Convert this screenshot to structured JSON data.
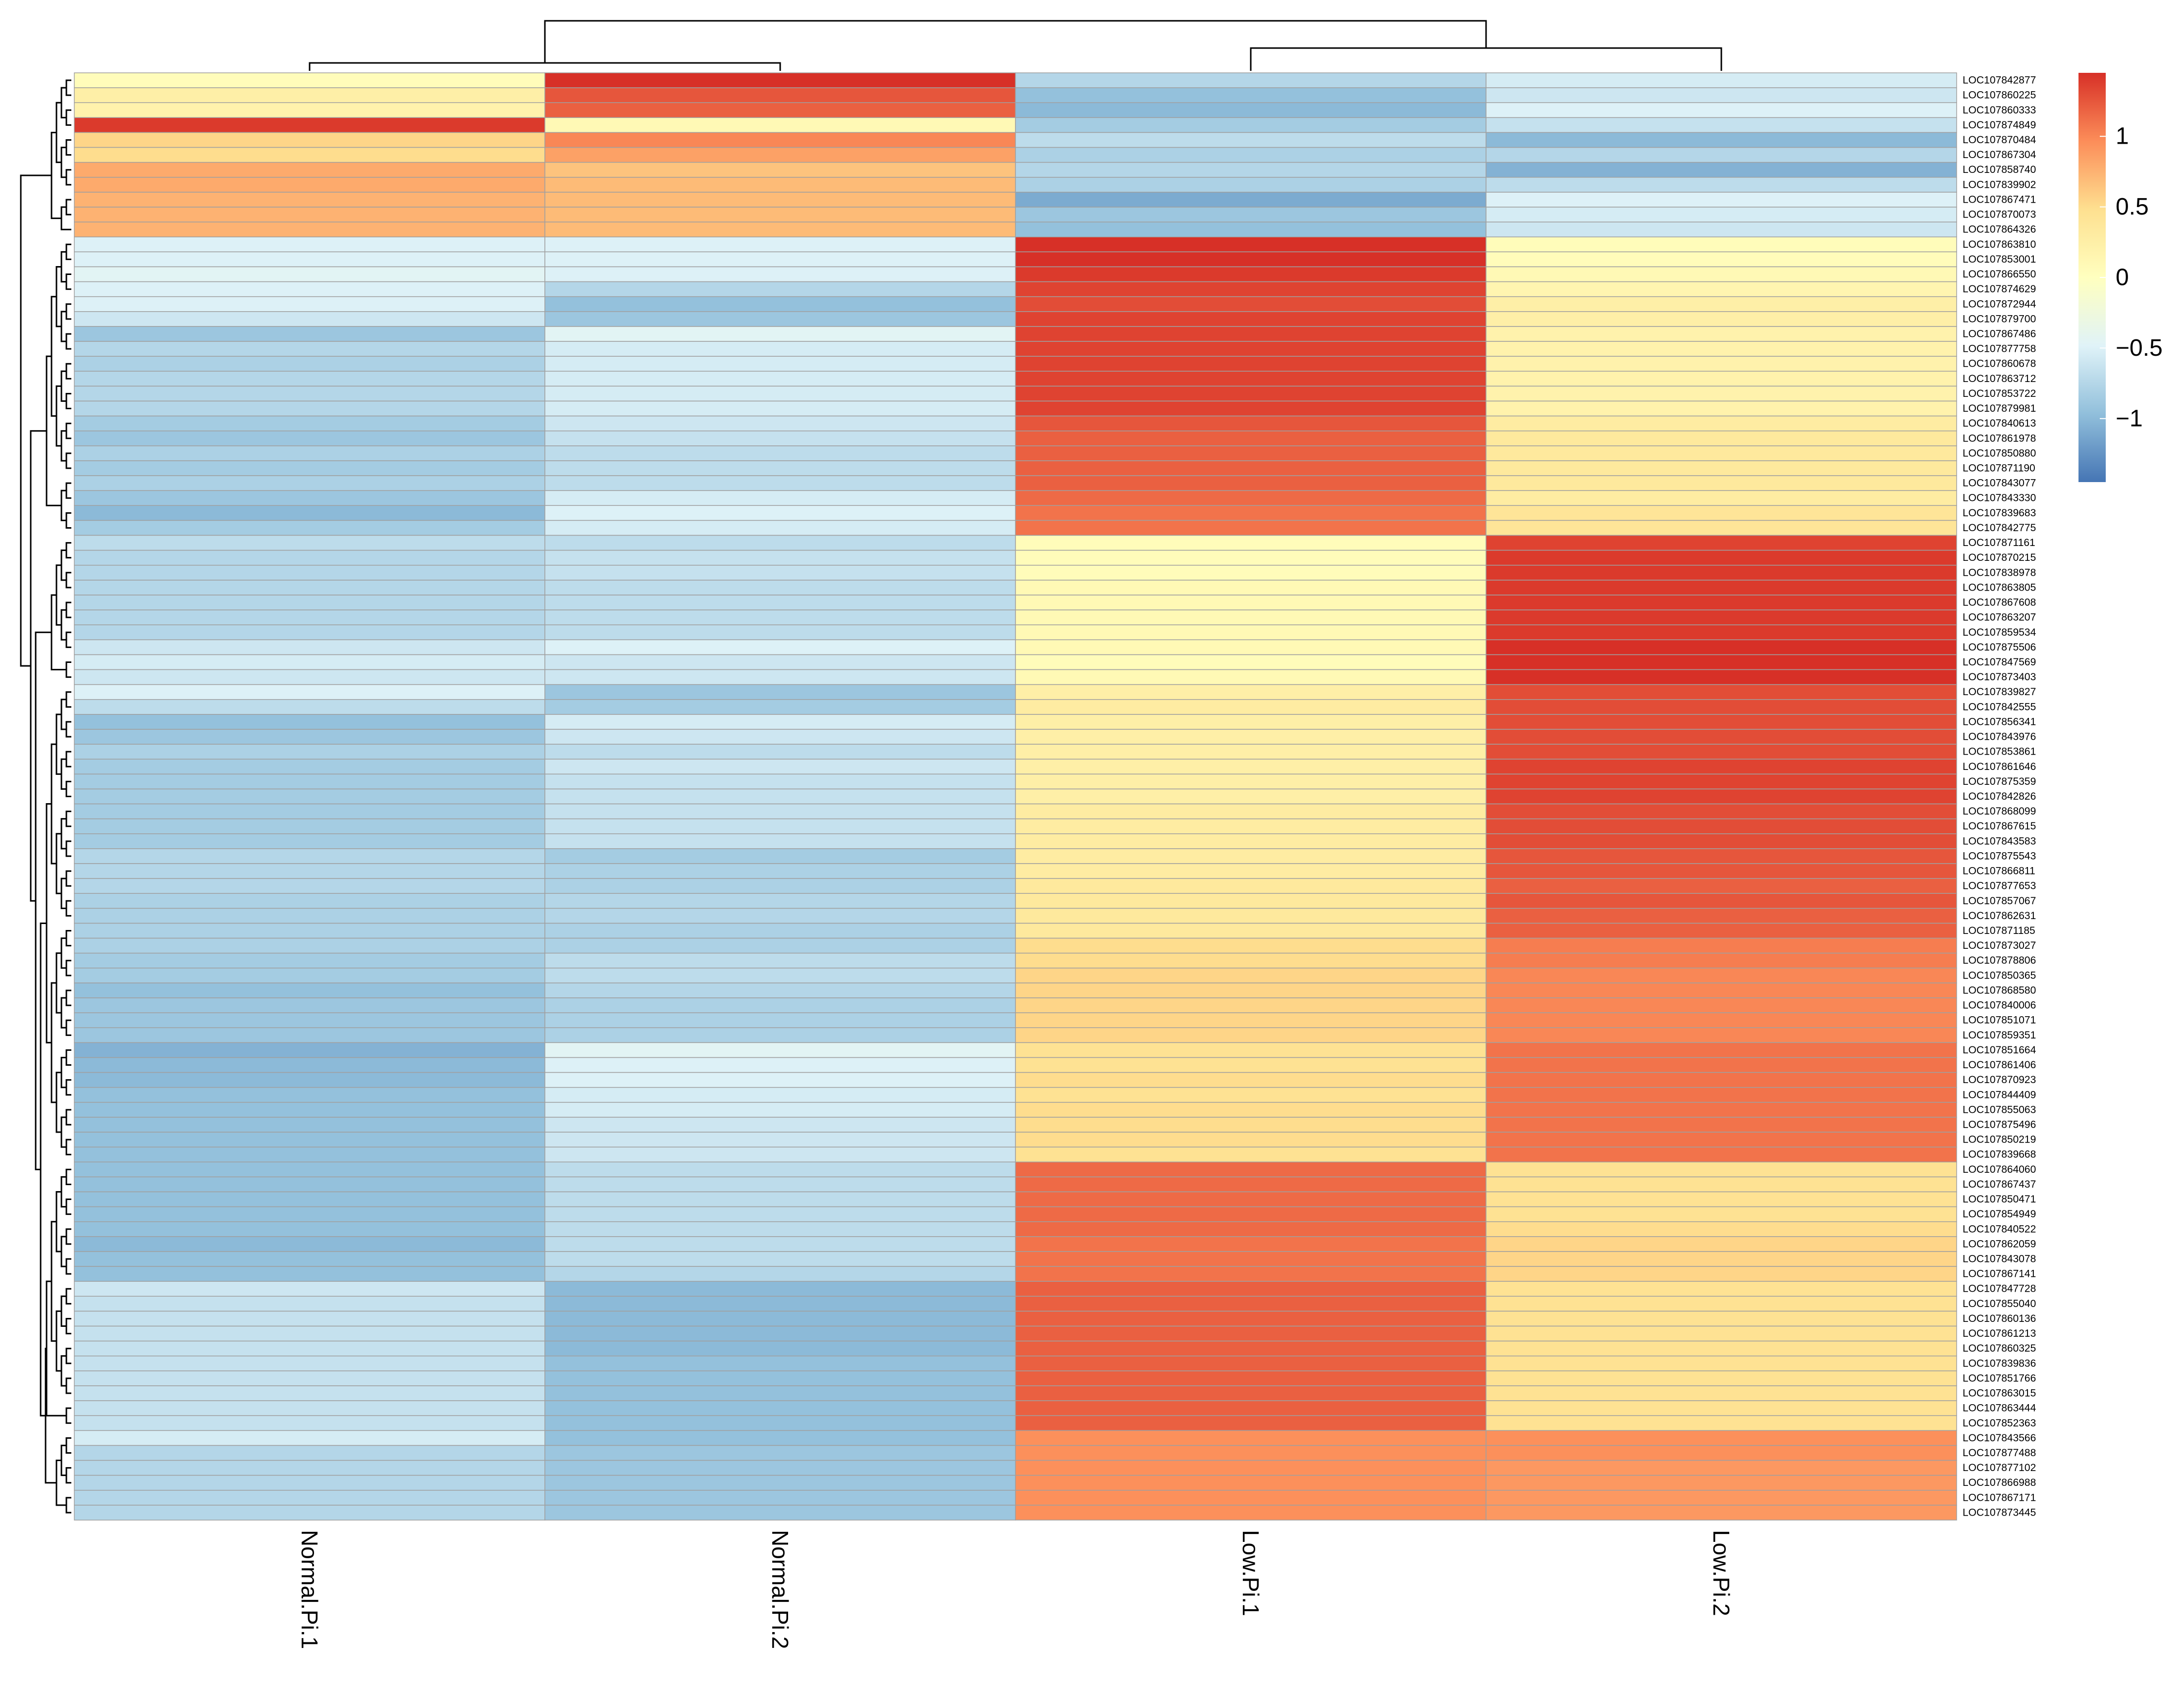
{
  "chart_data": {
    "type": "heatmap",
    "columns": [
      "Normal.Pi.1",
      "Normal.Pi.2",
      "Low.Pi.1",
      "Low.Pi.2"
    ],
    "rows": [
      "LOC107842877",
      "LOC107860225",
      "LOC107860333",
      "LOC107874849",
      "LOC107870484",
      "LOC107867304",
      "LOC107858740",
      "LOC107839902",
      "LOC107867471",
      "LOC107870073",
      "LOC107864326",
      "LOC107863810",
      "LOC107853001",
      "LOC107866550",
      "LOC107874629",
      "LOC107872944",
      "LOC107879700",
      "LOC107867486",
      "LOC107877758",
      "LOC107860678",
      "LOC107863712",
      "LOC107853722",
      "LOC107879981",
      "LOC107840613",
      "LOC107861978",
      "LOC107850880",
      "LOC107871190",
      "LOC107843077",
      "LOC107843330",
      "LOC107839683",
      "LOC107842775",
      "LOC107871161",
      "LOC107870215",
      "LOC107838978",
      "LOC107863805",
      "LOC107867608",
      "LOC107863207",
      "LOC107859534",
      "LOC107875506",
      "LOC107847569",
      "LOC107873403",
      "LOC107839827",
      "LOC107842555",
      "LOC107856341",
      "LOC107843976",
      "LOC107853861",
      "LOC107861646",
      "LOC107875359",
      "LOC107842826",
      "LOC107868099",
      "LOC107867615",
      "LOC107843583",
      "LOC107875543",
      "LOC107866811",
      "LOC107877653",
      "LOC107857067",
      "LOC107862631",
      "LOC107871185",
      "LOC107873027",
      "LOC107878806",
      "LOC107850365",
      "LOC107868580",
      "LOC107840006",
      "LOC107851071",
      "LOC107859351",
      "LOC107851664",
      "LOC107861406",
      "LOC107870923",
      "LOC107844409",
      "LOC107855063",
      "LOC107875496",
      "LOC107850219",
      "LOC107839668",
      "LOC107864060",
      "LOC107867437",
      "LOC107850471",
      "LOC107854949",
      "LOC107840522",
      "LOC107862059",
      "LOC107843078",
      "LOC107867141",
      "LOC107847728",
      "LOC107855040",
      "LOC107860136",
      "LOC107861213",
      "LOC107860325",
      "LOC107839836",
      "LOC107851766",
      "LOC107863015",
      "LOC107863444",
      "LOC107852363",
      "LOC107843566",
      "LOC107877488",
      "LOC107877102",
      "LOC107866988",
      "LOC107867171",
      "LOC107873445"
    ],
    "values": [
      [
        0.05,
        1.45,
        -0.75,
        -0.55
      ],
      [
        0.25,
        1.25,
        -0.95,
        -0.6
      ],
      [
        0.2,
        1.2,
        -1.0,
        -0.5
      ],
      [
        1.4,
        0.1,
        -0.85,
        -0.65
      ],
      [
        0.55,
        1.0,
        -0.7,
        -1.0
      ],
      [
        0.5,
        0.85,
        -0.8,
        -0.75
      ],
      [
        0.8,
        0.65,
        -0.75,
        -1.05
      ],
      [
        0.8,
        0.7,
        -0.8,
        -0.7
      ],
      [
        0.75,
        0.7,
        -1.1,
        -0.5
      ],
      [
        0.75,
        0.7,
        -0.9,
        -0.55
      ],
      [
        0.75,
        0.7,
        -0.95,
        -0.6
      ],
      [
        -0.5,
        -0.5,
        1.45,
        0.05
      ],
      [
        -0.5,
        -0.5,
        1.45,
        0.05
      ],
      [
        -0.45,
        -0.5,
        1.4,
        0.1
      ],
      [
        -0.5,
        -0.75,
        1.35,
        0.15
      ],
      [
        -0.5,
        -0.95,
        1.3,
        0.25
      ],
      [
        -0.6,
        -0.9,
        1.35,
        0.25
      ],
      [
        -0.9,
        -0.45,
        1.35,
        0.2
      ],
      [
        -0.75,
        -0.55,
        1.35,
        0.2
      ],
      [
        -0.8,
        -0.55,
        1.35,
        0.2
      ],
      [
        -0.75,
        -0.55,
        1.35,
        0.2
      ],
      [
        -0.75,
        -0.55,
        1.35,
        0.2
      ],
      [
        -0.75,
        -0.55,
        1.35,
        0.2
      ],
      [
        -0.85,
        -0.6,
        1.25,
        0.3
      ],
      [
        -0.9,
        -0.65,
        1.2,
        0.35
      ],
      [
        -0.8,
        -0.7,
        1.2,
        0.35
      ],
      [
        -0.85,
        -0.7,
        1.2,
        0.35
      ],
      [
        -0.8,
        -0.7,
        1.2,
        0.35
      ],
      [
        -0.9,
        -0.55,
        1.15,
        0.3
      ],
      [
        -1.0,
        -0.5,
        1.1,
        0.4
      ],
      [
        -0.85,
        -0.55,
        1.1,
        0.4
      ],
      [
        -0.7,
        -0.7,
        0.05,
        1.35
      ],
      [
        -0.75,
        -0.65,
        0.05,
        1.4
      ],
      [
        -0.75,
        -0.65,
        0.05,
        1.4
      ],
      [
        -0.75,
        -0.7,
        0.1,
        1.4
      ],
      [
        -0.75,
        -0.7,
        0.1,
        1.4
      ],
      [
        -0.75,
        -0.7,
        0.1,
        1.4
      ],
      [
        -0.75,
        -0.7,
        0.1,
        1.4
      ],
      [
        -0.6,
        -0.5,
        0.1,
        1.45
      ],
      [
        -0.55,
        -0.6,
        0.05,
        1.45
      ],
      [
        -0.6,
        -0.6,
        0.1,
        1.45
      ],
      [
        -0.5,
        -0.9,
        0.25,
        1.3
      ],
      [
        -0.7,
        -0.85,
        0.3,
        1.3
      ],
      [
        -0.95,
        -0.55,
        0.25,
        1.3
      ],
      [
        -0.9,
        -0.6,
        0.25,
        1.3
      ],
      [
        -0.8,
        -0.7,
        0.25,
        1.3
      ],
      [
        -0.85,
        -0.6,
        0.25,
        1.35
      ],
      [
        -0.85,
        -0.65,
        0.25,
        1.35
      ],
      [
        -0.85,
        -0.65,
        0.25,
        1.35
      ],
      [
        -0.85,
        -0.65,
        0.3,
        1.3
      ],
      [
        -0.85,
        -0.65,
        0.3,
        1.3
      ],
      [
        -0.85,
        -0.65,
        0.3,
        1.3
      ],
      [
        -0.75,
        -0.85,
        0.3,
        1.25
      ],
      [
        -0.75,
        -0.8,
        0.3,
        1.25
      ],
      [
        -0.75,
        -0.8,
        0.35,
        1.2
      ],
      [
        -0.8,
        -0.75,
        0.35,
        1.25
      ],
      [
        -0.8,
        -0.75,
        0.35,
        1.2
      ],
      [
        -0.8,
        -0.8,
        0.35,
        1.2
      ],
      [
        -0.8,
        -0.8,
        0.5,
        1.05
      ],
      [
        -0.85,
        -0.7,
        0.5,
        1.05
      ],
      [
        -0.85,
        -0.7,
        0.55,
        1.0
      ],
      [
        -0.95,
        -0.75,
        0.55,
        1.0
      ],
      [
        -0.9,
        -0.8,
        0.55,
        1.0
      ],
      [
        -0.9,
        -0.8,
        0.55,
        1.0
      ],
      [
        -0.9,
        -0.8,
        0.55,
        1.0
      ],
      [
        -1.05,
        -0.45,
        0.45,
        1.1
      ],
      [
        -1.0,
        -0.5,
        0.45,
        1.1
      ],
      [
        -1.0,
        -0.5,
        0.5,
        1.1
      ],
      [
        -0.95,
        -0.55,
        0.45,
        1.1
      ],
      [
        -0.95,
        -0.55,
        0.5,
        1.1
      ],
      [
        -0.95,
        -0.6,
        0.5,
        1.1
      ],
      [
        -0.95,
        -0.6,
        0.5,
        1.1
      ],
      [
        -0.95,
        -0.6,
        0.45,
        1.1
      ],
      [
        -0.95,
        -0.7,
        1.15,
        0.45
      ],
      [
        -0.95,
        -0.7,
        1.15,
        0.45
      ],
      [
        -0.95,
        -0.7,
        1.15,
        0.45
      ],
      [
        -0.95,
        -0.7,
        1.15,
        0.45
      ],
      [
        -0.95,
        -0.7,
        1.15,
        0.5
      ],
      [
        -1.0,
        -0.7,
        1.1,
        0.55
      ],
      [
        -0.95,
        -0.7,
        1.1,
        0.55
      ],
      [
        -0.95,
        -0.75,
        1.1,
        0.55
      ],
      [
        -0.6,
        -1.0,
        1.2,
        0.45
      ],
      [
        -0.65,
        -1.0,
        1.2,
        0.45
      ],
      [
        -0.65,
        -1.0,
        1.2,
        0.45
      ],
      [
        -0.65,
        -1.0,
        1.2,
        0.45
      ],
      [
        -0.65,
        -1.0,
        1.2,
        0.45
      ],
      [
        -0.65,
        -0.95,
        1.2,
        0.45
      ],
      [
        -0.65,
        -0.95,
        1.2,
        0.45
      ],
      [
        -0.65,
        -0.95,
        1.2,
        0.45
      ],
      [
        -0.65,
        -0.95,
        1.2,
        0.45
      ],
      [
        -0.65,
        -0.95,
        1.2,
        0.45
      ],
      [
        -0.55,
        -0.95,
        0.95,
        0.95
      ],
      [
        -0.75,
        -0.9,
        0.95,
        0.95
      ],
      [
        -0.75,
        -0.9,
        0.95,
        0.9
      ],
      [
        -0.75,
        -0.9,
        0.95,
        0.9
      ],
      [
        -0.75,
        -0.9,
        0.95,
        0.9
      ],
      [
        -0.75,
        -0.9,
        0.95,
        0.9
      ]
    ],
    "color_scale": {
      "min": -1.45,
      "max": 1.45,
      "stops": [
        "#4575b4",
        "#91bfdb",
        "#e0f3f8",
        "#ffffbf",
        "#fee090",
        "#fc8d59",
        "#d73027"
      ],
      "ticks": [
        {
          "value": 1,
          "label": "1"
        },
        {
          "value": 0.5,
          "label": "0.5"
        },
        {
          "value": 0,
          "label": "0"
        },
        {
          "value": -0.5,
          "label": "−0.5"
        },
        {
          "value": -1,
          "label": "−1"
        }
      ]
    },
    "cell_border_color": "#a0a0a0",
    "column_dendrogram": "((Normal.Pi.1,Normal.Pi.2),(Low.Pi.1,Low.Pi.2))",
    "row_dendrogram": true,
    "legend_position": "top-right"
  }
}
